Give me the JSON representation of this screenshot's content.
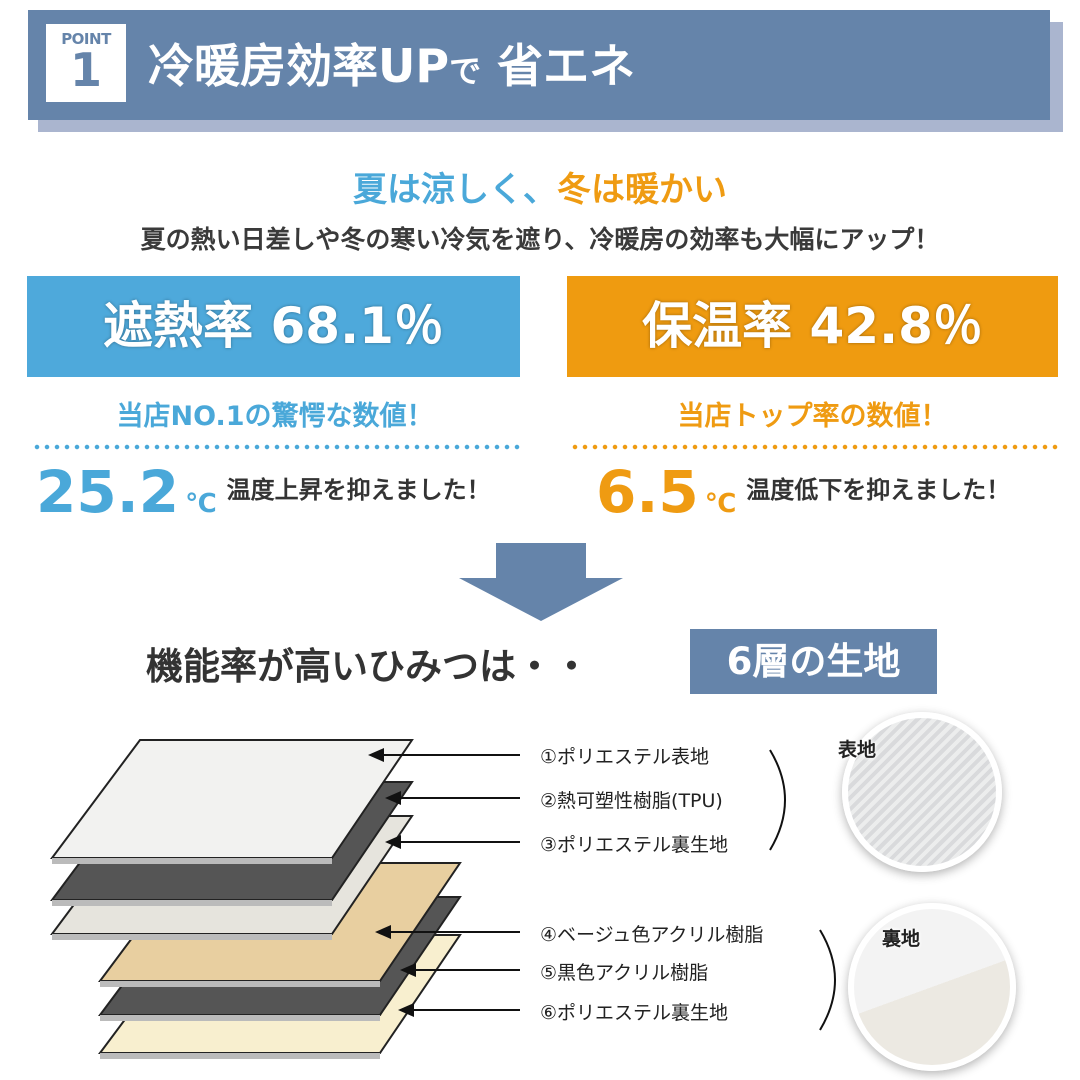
{
  "header": {
    "point_label": "POINT",
    "point_number": "1",
    "title_main": "冷暖房効率UP",
    "title_de": "で",
    "title_end": "省エネ"
  },
  "headline": {
    "part_blue": "夏は涼しく、",
    "part_orange": "冬は暖かい"
  },
  "subtitle": "夏の熱い日差しや冬の寒い冷気を遮り、冷暖房の効率も大幅にアップ！",
  "stats": [
    {
      "label": "遮熱率 68.1％",
      "claim": "当店NO.1の驚愕な数値！",
      "temp_value": "25.2",
      "temp_unit": "℃",
      "temp_text": "温度上昇を抑えました！",
      "color": "#4ea9db"
    },
    {
      "label": "保温率 42.8％",
      "claim": "当店トップ率の数値！",
      "temp_value": "6.5",
      "temp_unit": "℃",
      "temp_text": "温度低下を抑えました！",
      "color": "#ef9b10"
    }
  ],
  "secret": {
    "text": "機能率が高いひみつは・・",
    "tag": "6層の生地"
  },
  "layers": [
    {
      "label": "①ポリエステル表地",
      "color": "#f2f2f0"
    },
    {
      "label": "②熱可塑性樹脂(TPU)",
      "color": "#555555"
    },
    {
      "label": "③ポリエステル裏生地",
      "color": "#e6e4dd"
    },
    {
      "label": "④ベージュ色アクリル樹脂",
      "color": "#e8cfa0"
    },
    {
      "label": "⑤黒色アクリル樹脂",
      "color": "#555555"
    },
    {
      "label": "⑥ポリエステル裏生地",
      "color": "#f8efcf"
    }
  ],
  "swatches": {
    "front": "表地",
    "back": "裏地"
  }
}
